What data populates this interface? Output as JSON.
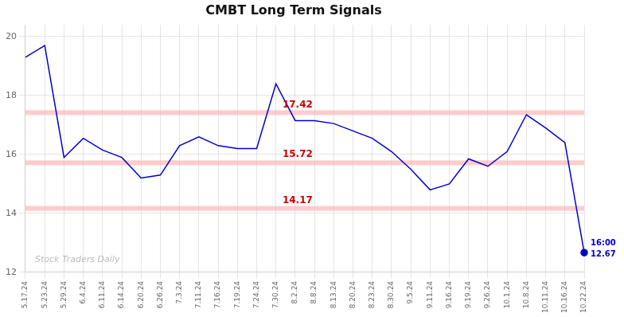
{
  "chart_data": {
    "type": "line",
    "title": "CMBT Long Term Signals",
    "categories": [
      "5.17.24",
      "5.23.24",
      "5.29.24",
      "6.4.24",
      "6.11.24",
      "6.14.24",
      "6.20.24",
      "6.26.24",
      "7.3.24",
      "7.11.24",
      "7.16.24",
      "7.19.24",
      "7.24.24",
      "7.30.24",
      "8.2.24",
      "8.8.24",
      "8.13.24",
      "8.20.24",
      "8.23.24",
      "8.30.24",
      "9.5.24",
      "9.11.24",
      "9.16.24",
      "9.19.24",
      "9.26.24",
      "10.1.24",
      "10.8.24",
      "10.11.24",
      "10.16.24",
      "10.22.24"
    ],
    "values": [
      19.3,
      19.7,
      15.9,
      16.55,
      16.15,
      15.9,
      15.2,
      15.3,
      16.3,
      16.6,
      16.3,
      16.2,
      16.2,
      18.4,
      17.15,
      17.15,
      17.05,
      16.8,
      16.55,
      16.1,
      15.5,
      14.8,
      15.0,
      15.85,
      15.6,
      16.1,
      17.35,
      16.9,
      16.4,
      12.67
    ],
    "color": "#0000cc",
    "ylim": [
      12,
      20.4
    ],
    "yticks": [
      12,
      14,
      16,
      18,
      20
    ],
    "grid": true,
    "annotations": [
      {
        "type": "hline",
        "value": 17.42,
        "text": "17.42",
        "color": "#cc0000",
        "band_color": "#ffaaaa"
      },
      {
        "type": "hline",
        "value": 15.72,
        "text": "15.72",
        "color": "#cc0000",
        "band_color": "#ffaaaa"
      },
      {
        "type": "hline",
        "value": 14.17,
        "text": "14.17",
        "color": "#cc0000",
        "band_color": "#ffaaaa"
      },
      {
        "type": "point",
        "category": "10.22.24",
        "value": 12.67,
        "text": [
          "16:00",
          "12.67"
        ],
        "color": "#0000cc"
      },
      {
        "type": "watermark",
        "text": "Stock Traders Daily"
      }
    ]
  }
}
